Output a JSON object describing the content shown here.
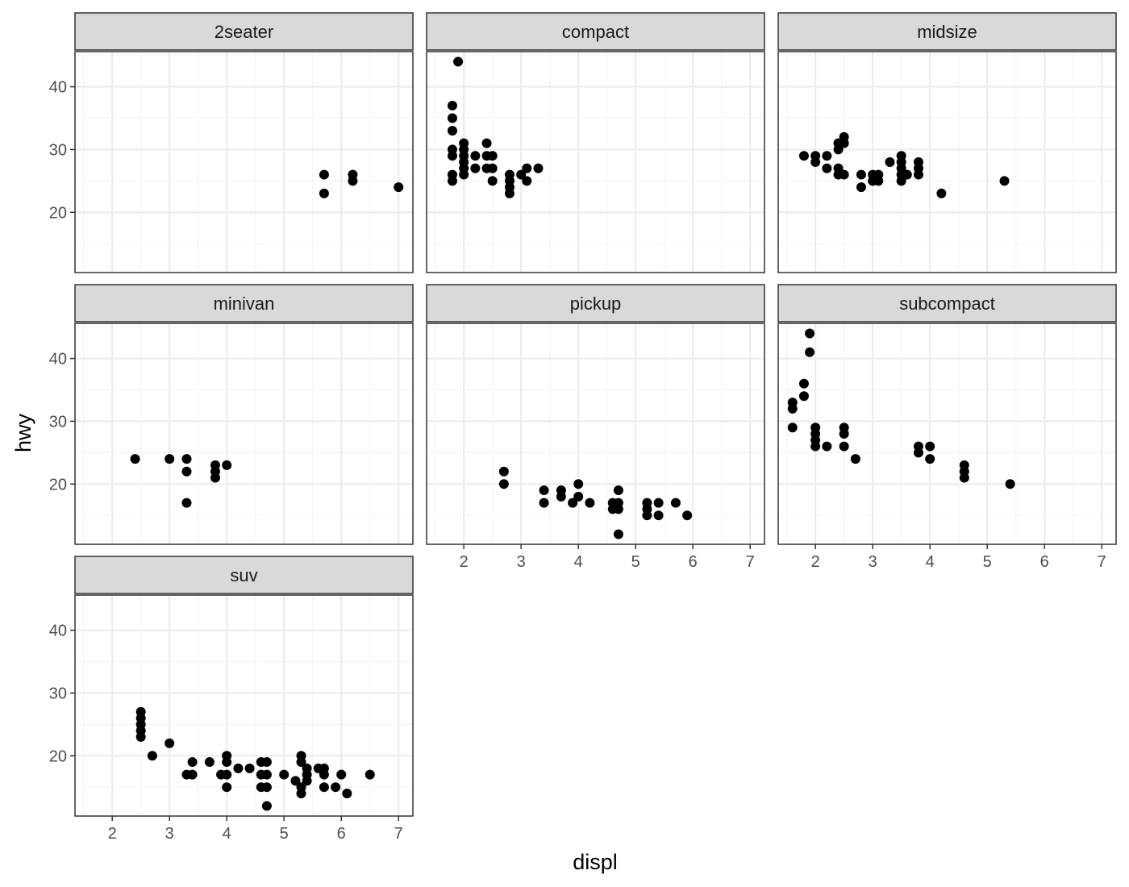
{
  "chart_data": {
    "type": "scatter",
    "xlabel": "displ",
    "ylabel": "hwy",
    "xlim": [
      1.35,
      7.25
    ],
    "ylim": [
      10.4,
      45.6
    ],
    "x_ticks": [
      2,
      3,
      4,
      5,
      6,
      7
    ],
    "y_ticks": [
      20,
      30,
      40
    ],
    "grid": true,
    "colors": {
      "point": "#000000",
      "strip_bg": "#d9d9d9",
      "border": "#333333",
      "grid_major": "#ebebeb",
      "grid_minor": "#f5f5f5"
    },
    "facets": [
      {
        "name": "2seater",
        "points": [
          [
            5.7,
            26
          ],
          [
            5.7,
            23
          ],
          [
            6.2,
            26
          ],
          [
            6.2,
            25
          ],
          [
            7.0,
            24
          ]
        ]
      },
      {
        "name": "compact",
        "points": [
          [
            1.8,
            37
          ],
          [
            1.8,
            35
          ],
          [
            1.8,
            33
          ],
          [
            1.8,
            30
          ],
          [
            1.8,
            29
          ],
          [
            1.8,
            26
          ],
          [
            1.8,
            25
          ],
          [
            1.9,
            44
          ],
          [
            2.0,
            31
          ],
          [
            2.0,
            30
          ],
          [
            2.0,
            29
          ],
          [
            2.0,
            28
          ],
          [
            2.0,
            27
          ],
          [
            2.0,
            26
          ],
          [
            2.2,
            29
          ],
          [
            2.2,
            27
          ],
          [
            2.4,
            31
          ],
          [
            2.4,
            29
          ],
          [
            2.4,
            27
          ],
          [
            2.5,
            29
          ],
          [
            2.5,
            27
          ],
          [
            2.5,
            25
          ],
          [
            2.8,
            26
          ],
          [
            2.8,
            25
          ],
          [
            2.8,
            24
          ],
          [
            2.8,
            23
          ],
          [
            3.0,
            26
          ],
          [
            3.1,
            27
          ],
          [
            3.1,
            25
          ],
          [
            3.3,
            27
          ]
        ]
      },
      {
        "name": "midsize",
        "points": [
          [
            1.8,
            29
          ],
          [
            2.0,
            29
          ],
          [
            2.0,
            28
          ],
          [
            2.2,
            29
          ],
          [
            2.2,
            27
          ],
          [
            2.4,
            31
          ],
          [
            2.4,
            30
          ],
          [
            2.4,
            27
          ],
          [
            2.4,
            26
          ],
          [
            2.5,
            32
          ],
          [
            2.5,
            31
          ],
          [
            2.5,
            26
          ],
          [
            2.8,
            26
          ],
          [
            2.8,
            24
          ],
          [
            3.0,
            26
          ],
          [
            3.0,
            25
          ],
          [
            3.1,
            26
          ],
          [
            3.1,
            25
          ],
          [
            3.3,
            28
          ],
          [
            3.5,
            29
          ],
          [
            3.5,
            28
          ],
          [
            3.5,
            27
          ],
          [
            3.5,
            26
          ],
          [
            3.5,
            25
          ],
          [
            3.6,
            26
          ],
          [
            3.8,
            28
          ],
          [
            3.8,
            27
          ],
          [
            3.8,
            26
          ],
          [
            4.2,
            23
          ],
          [
            5.3,
            25
          ]
        ]
      },
      {
        "name": "minivan",
        "points": [
          [
            2.4,
            24
          ],
          [
            3.0,
            24
          ],
          [
            3.3,
            24
          ],
          [
            3.3,
            22
          ],
          [
            3.3,
            17
          ],
          [
            3.8,
            23
          ],
          [
            3.8,
            22
          ],
          [
            3.8,
            21
          ],
          [
            4.0,
            23
          ]
        ]
      },
      {
        "name": "pickup",
        "points": [
          [
            2.7,
            22
          ],
          [
            2.7,
            20
          ],
          [
            3.4,
            19
          ],
          [
            3.4,
            17
          ],
          [
            3.7,
            19
          ],
          [
            3.7,
            18
          ],
          [
            3.9,
            17
          ],
          [
            4.0,
            20
          ],
          [
            4.0,
            18
          ],
          [
            4.2,
            17
          ],
          [
            4.6,
            17
          ],
          [
            4.6,
            16
          ],
          [
            4.7,
            19
          ],
          [
            4.7,
            17
          ],
          [
            4.7,
            16
          ],
          [
            4.7,
            12
          ],
          [
            5.2,
            17
          ],
          [
            5.2,
            16
          ],
          [
            5.2,
            15
          ],
          [
            5.4,
            17
          ],
          [
            5.4,
            15
          ],
          [
            5.7,
            17
          ],
          [
            5.9,
            15
          ]
        ]
      },
      {
        "name": "subcompact",
        "points": [
          [
            1.6,
            33
          ],
          [
            1.6,
            32
          ],
          [
            1.6,
            29
          ],
          [
            1.8,
            36
          ],
          [
            1.8,
            34
          ],
          [
            1.9,
            44
          ],
          [
            1.9,
            41
          ],
          [
            2.0,
            29
          ],
          [
            2.0,
            28
          ],
          [
            2.0,
            27
          ],
          [
            2.0,
            26
          ],
          [
            2.2,
            26
          ],
          [
            2.5,
            29
          ],
          [
            2.5,
            28
          ],
          [
            2.5,
            26
          ],
          [
            2.7,
            24
          ],
          [
            3.8,
            26
          ],
          [
            3.8,
            25
          ],
          [
            4.0,
            26
          ],
          [
            4.0,
            24
          ],
          [
            4.6,
            23
          ],
          [
            4.6,
            22
          ],
          [
            4.6,
            21
          ],
          [
            5.4,
            20
          ]
        ]
      },
      {
        "name": "suv",
        "points": [
          [
            2.5,
            27
          ],
          [
            2.5,
            26
          ],
          [
            2.5,
            25
          ],
          [
            2.5,
            24
          ],
          [
            2.5,
            23
          ],
          [
            2.7,
            20
          ],
          [
            3.0,
            22
          ],
          [
            3.3,
            17
          ],
          [
            3.4,
            19
          ],
          [
            3.4,
            17
          ],
          [
            3.7,
            19
          ],
          [
            3.9,
            17
          ],
          [
            4.0,
            20
          ],
          [
            4.0,
            19
          ],
          [
            4.0,
            17
          ],
          [
            4.0,
            15
          ],
          [
            4.2,
            18
          ],
          [
            4.4,
            18
          ],
          [
            4.6,
            19
          ],
          [
            4.6,
            17
          ],
          [
            4.6,
            15
          ],
          [
            4.7,
            19
          ],
          [
            4.7,
            17
          ],
          [
            4.7,
            15
          ],
          [
            4.7,
            12
          ],
          [
            5.0,
            17
          ],
          [
            5.2,
            16
          ],
          [
            5.3,
            20
          ],
          [
            5.3,
            19
          ],
          [
            5.3,
            15
          ],
          [
            5.3,
            14
          ],
          [
            5.4,
            18
          ],
          [
            5.4,
            17
          ],
          [
            5.4,
            16
          ],
          [
            5.6,
            18
          ],
          [
            5.7,
            18
          ],
          [
            5.7,
            17
          ],
          [
            5.7,
            15
          ],
          [
            5.9,
            15
          ],
          [
            6.0,
            17
          ],
          [
            6.1,
            14
          ],
          [
            6.5,
            17
          ]
        ]
      }
    ]
  }
}
